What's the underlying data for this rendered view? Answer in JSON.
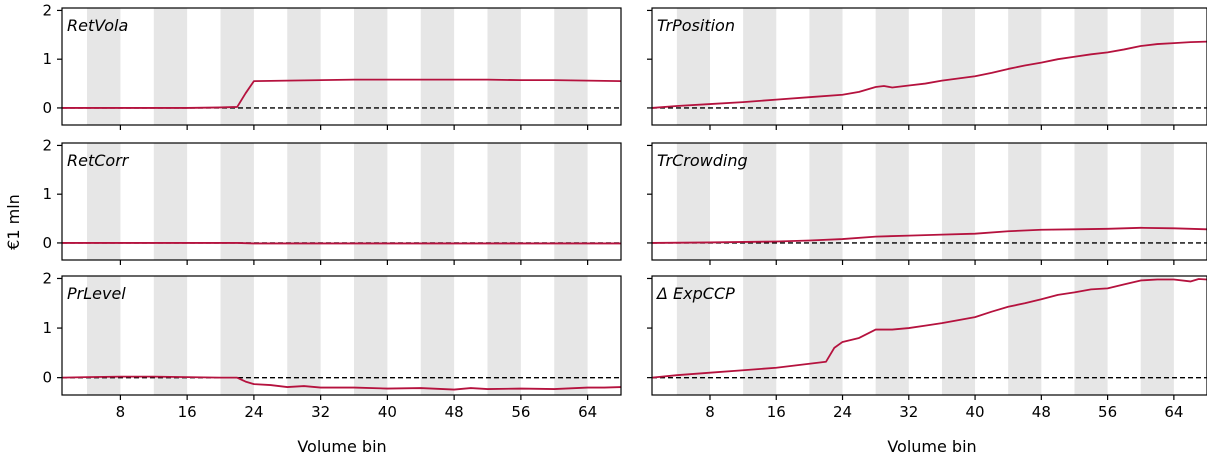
{
  "figure": {
    "ylabel": "€1 mln",
    "xlabel": "Volume bin",
    "line_color": "#b5123e",
    "band_color": "#e6e6e6"
  },
  "chart_data": [
    {
      "type": "line",
      "title": "RetVola",
      "xlabel": "",
      "ylabel": "€1 mln",
      "xlim": [
        1,
        68
      ],
      "ylim": [
        -0.35,
        2.05
      ],
      "xticks": [
        8,
        16,
        24,
        32,
        40,
        48,
        56,
        64
      ],
      "yticks": [
        0,
        1,
        2
      ],
      "shaded_bins": [
        [
          4,
          8
        ],
        [
          12,
          16
        ],
        [
          20,
          24
        ],
        [
          28,
          32
        ],
        [
          36,
          40
        ],
        [
          44,
          48
        ],
        [
          52,
          56
        ],
        [
          60,
          64
        ]
      ],
      "reference_line": 0,
      "series": [
        {
          "x": [
            1,
            4,
            8,
            12,
            16,
            20,
            22,
            23,
            24,
            28,
            32,
            36,
            40,
            44,
            48,
            52,
            56,
            60,
            64,
            68
          ],
          "y": [
            0,
            0,
            0,
            0,
            0,
            0.01,
            0.02,
            0.3,
            0.55,
            0.56,
            0.57,
            0.58,
            0.58,
            0.58,
            0.58,
            0.58,
            0.57,
            0.57,
            0.56,
            0.55
          ]
        }
      ]
    },
    {
      "type": "line",
      "title": "TrPosition",
      "xlabel": "",
      "ylabel": "",
      "xlim": [
        1,
        68
      ],
      "ylim": [
        -0.35,
        2.05
      ],
      "xticks": [
        8,
        16,
        24,
        32,
        40,
        48,
        56,
        64
      ],
      "yticks": [
        0,
        1,
        2
      ],
      "shaded_bins": [
        [
          4,
          8
        ],
        [
          12,
          16
        ],
        [
          20,
          24
        ],
        [
          28,
          32
        ],
        [
          36,
          40
        ],
        [
          44,
          48
        ],
        [
          52,
          56
        ],
        [
          60,
          64
        ]
      ],
      "reference_line": 0,
      "series": [
        {
          "x": [
            1,
            4,
            8,
            12,
            16,
            20,
            24,
            26,
            28,
            29,
            30,
            32,
            34,
            36,
            40,
            42,
            44,
            46,
            48,
            50,
            52,
            54,
            56,
            58,
            60,
            62,
            64,
            66,
            68
          ],
          "y": [
            0,
            0.04,
            0.08,
            0.12,
            0.17,
            0.22,
            0.27,
            0.33,
            0.43,
            0.45,
            0.42,
            0.46,
            0.5,
            0.56,
            0.65,
            0.72,
            0.8,
            0.87,
            0.93,
            1.0,
            1.05,
            1.1,
            1.14,
            1.2,
            1.27,
            1.31,
            1.33,
            1.35,
            1.36
          ]
        }
      ]
    },
    {
      "type": "line",
      "title": "RetCorr",
      "xlabel": "",
      "ylabel": "€1 mln",
      "xlim": [
        1,
        68
      ],
      "ylim": [
        -0.35,
        2.05
      ],
      "xticks": [
        8,
        16,
        24,
        32,
        40,
        48,
        56,
        64
      ],
      "yticks": [
        0,
        1,
        2
      ],
      "shaded_bins": [
        [
          4,
          8
        ],
        [
          12,
          16
        ],
        [
          20,
          24
        ],
        [
          28,
          32
        ],
        [
          36,
          40
        ],
        [
          44,
          48
        ],
        [
          52,
          56
        ],
        [
          60,
          64
        ]
      ],
      "reference_line": 0,
      "series": [
        {
          "x": [
            1,
            8,
            16,
            22,
            24,
            32,
            40,
            48,
            56,
            64,
            68
          ],
          "y": [
            0,
            0,
            0,
            0,
            -0.01,
            -0.01,
            -0.01,
            -0.01,
            -0.01,
            -0.01,
            -0.01
          ]
        }
      ]
    },
    {
      "type": "line",
      "title": "TrCrowding",
      "xlabel": "",
      "ylabel": "",
      "xlim": [
        1,
        68
      ],
      "ylim": [
        -0.35,
        2.05
      ],
      "xticks": [
        8,
        16,
        24,
        32,
        40,
        48,
        56,
        64
      ],
      "yticks": [
        0,
        1,
        2
      ],
      "shaded_bins": [
        [
          4,
          8
        ],
        [
          12,
          16
        ],
        [
          20,
          24
        ],
        [
          28,
          32
        ],
        [
          36,
          40
        ],
        [
          44,
          48
        ],
        [
          52,
          56
        ],
        [
          60,
          64
        ]
      ],
      "reference_line": 0,
      "series": [
        {
          "x": [
            1,
            8,
            16,
            20,
            24,
            28,
            32,
            36,
            40,
            44,
            48,
            52,
            56,
            60,
            64,
            68
          ],
          "y": [
            0,
            0.01,
            0.03,
            0.05,
            0.08,
            0.13,
            0.15,
            0.17,
            0.19,
            0.24,
            0.27,
            0.28,
            0.29,
            0.31,
            0.3,
            0.28
          ]
        }
      ]
    },
    {
      "type": "line",
      "title": "PrLevel",
      "xlabel": "Volume bin",
      "ylabel": "€1 mln",
      "xlim": [
        1,
        68
      ],
      "ylim": [
        -0.35,
        2.05
      ],
      "xticks": [
        8,
        16,
        24,
        32,
        40,
        48,
        56,
        64
      ],
      "yticks": [
        0,
        1,
        2
      ],
      "shaded_bins": [
        [
          4,
          8
        ],
        [
          12,
          16
        ],
        [
          20,
          24
        ],
        [
          28,
          32
        ],
        [
          36,
          40
        ],
        [
          44,
          48
        ],
        [
          52,
          56
        ],
        [
          60,
          64
        ]
      ],
      "reference_line": 0,
      "series": [
        {
          "x": [
            1,
            4,
            8,
            12,
            16,
            20,
            22,
            23,
            24,
            26,
            28,
            30,
            32,
            36,
            40,
            44,
            48,
            50,
            52,
            56,
            60,
            64,
            66,
            68
          ],
          "y": [
            0,
            0.01,
            0.02,
            0.02,
            0.01,
            0,
            0,
            -0.08,
            -0.13,
            -0.15,
            -0.19,
            -0.17,
            -0.2,
            -0.2,
            -0.22,
            -0.21,
            -0.24,
            -0.21,
            -0.23,
            -0.22,
            -0.23,
            -0.2,
            -0.2,
            -0.19
          ]
        }
      ]
    },
    {
      "type": "line",
      "title": "Δ ExpCCP",
      "xlabel": "Volume bin",
      "ylabel": "",
      "xlim": [
        1,
        68
      ],
      "ylim": [
        -0.35,
        2.05
      ],
      "xticks": [
        8,
        16,
        24,
        32,
        40,
        48,
        56,
        64
      ],
      "yticks": [
        0,
        1,
        2
      ],
      "shaded_bins": [
        [
          4,
          8
        ],
        [
          12,
          16
        ],
        [
          20,
          24
        ],
        [
          28,
          32
        ],
        [
          36,
          40
        ],
        [
          44,
          48
        ],
        [
          52,
          56
        ],
        [
          60,
          64
        ]
      ],
      "reference_line": 0,
      "series": [
        {
          "x": [
            1,
            4,
            8,
            12,
            16,
            20,
            22,
            23,
            24,
            26,
            28,
            30,
            32,
            34,
            36,
            40,
            42,
            44,
            46,
            48,
            50,
            52,
            54,
            56,
            58,
            60,
            62,
            64,
            66,
            67,
            68
          ],
          "y": [
            0,
            0.05,
            0.1,
            0.15,
            0.2,
            0.28,
            0.32,
            0.6,
            0.72,
            0.8,
            0.97,
            0.97,
            1.0,
            1.05,
            1.1,
            1.22,
            1.33,
            1.43,
            1.5,
            1.58,
            1.67,
            1.72,
            1.78,
            1.8,
            1.88,
            1.96,
            1.98,
            1.98,
            1.94,
            1.99,
            1.98
          ]
        }
      ]
    }
  ]
}
